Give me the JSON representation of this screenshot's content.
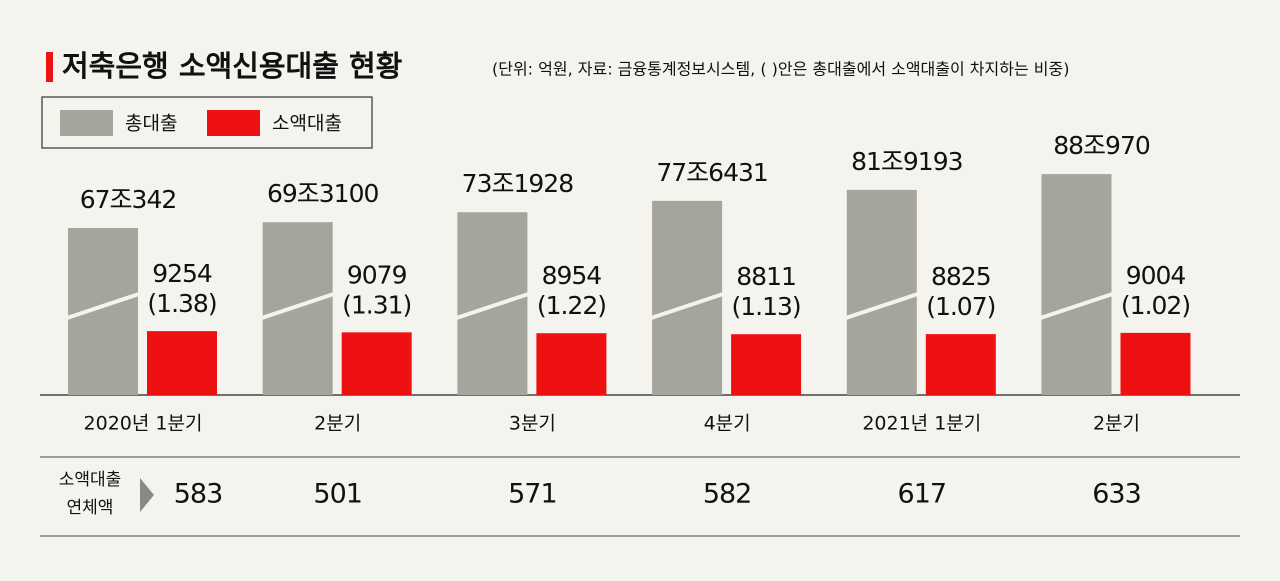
{
  "chart_data": {
    "type": "bar",
    "title": "저축은행 소액신용대출 현황",
    "subtitle": "(단위: 억원, 자료: 금융통계정보시스템, (    )안은 총대출에서 소액대출이 차지하는 비중)",
    "categories": [
      "2020년 1분기",
      "2분기",
      "3분기",
      "4분기",
      "2021년 1분기",
      "2분기"
    ],
    "series": [
      {
        "name": "총대출",
        "color": "#a6a59d",
        "values": [
          670342,
          693100,
          731928,
          776431,
          819193,
          880970
        ],
        "value_labels": [
          "67조342",
          "69조3100",
          "73조1928",
          "77조6431",
          "81조9193",
          "88조970"
        ]
      },
      {
        "name": "소액대출",
        "color": "#ee1111",
        "values": [
          9254,
          9079,
          8954,
          8811,
          8825,
          9004
        ]
      }
    ],
    "shares": {
      "values": [
        1.38,
        1.31,
        1.22,
        1.13,
        1.07,
        1.02
      ],
      "value_labels": [
        "(1.38)",
        "(1.31)",
        "(1.22)",
        "(1.13)",
        "(1.07)",
        "(1.02)"
      ]
    },
    "overdue": {
      "label": [
        "소액대출",
        "연체액"
      ],
      "values": [
        583,
        501,
        571,
        582,
        617,
        633
      ]
    }
  }
}
